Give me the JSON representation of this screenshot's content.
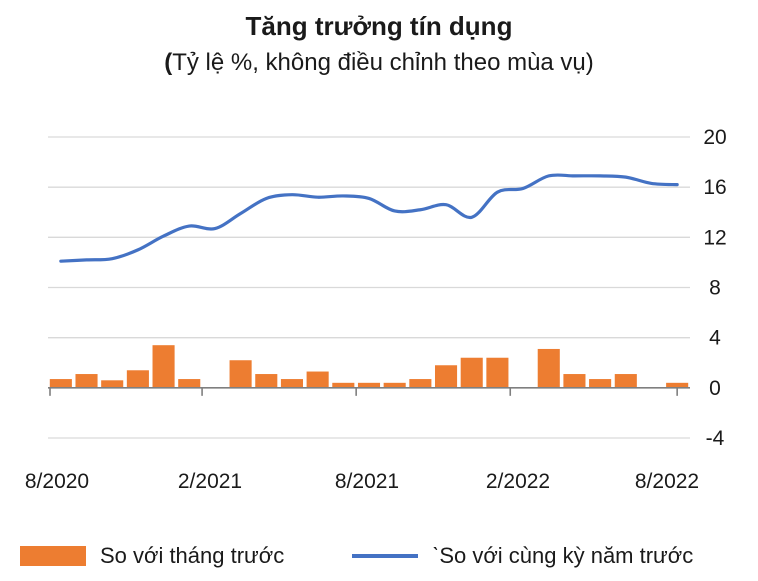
{
  "chart_data": {
    "type": "bar+line",
    "title": "Tăng trưởng tín dụng",
    "subtitle": "(Tỷ lệ %, không điều chỉnh theo mùa vụ)",
    "x_tick_labels": [
      "8/2020",
      "2/2021",
      "8/2021",
      "2/2022",
      "8/2022"
    ],
    "y_tick_labels": [
      "20",
      "16",
      "12",
      "8",
      "4",
      "0",
      "-4"
    ],
    "ylim": [
      -4,
      20
    ],
    "y_ticks": [
      20,
      16,
      12,
      8,
      4,
      0,
      -4
    ],
    "grid": true,
    "legend_position": "bottom",
    "months": [
      "8/2020",
      "9/2020",
      "10/2020",
      "11/2020",
      "12/2020",
      "1/2021",
      "2/2021",
      "3/2021",
      "4/2021",
      "5/2021",
      "6/2021",
      "7/2021",
      "8/2021",
      "9/2021",
      "10/2021",
      "11/2021",
      "12/2021",
      "1/2022",
      "2/2022",
      "3/2022",
      "4/2022",
      "5/2022",
      "6/2022",
      "7/2022",
      "8/2022"
    ],
    "series": [
      {
        "name": "So với tháng trước",
        "kind": "bar",
        "color": "#ED7D31",
        "values": [
          0.7,
          1.1,
          0.6,
          1.4,
          3.4,
          0.7,
          0.0,
          2.2,
          1.1,
          0.7,
          1.3,
          0.4,
          0.4,
          0.4,
          0.7,
          1.8,
          2.4,
          2.4,
          0.0,
          3.1,
          1.1,
          0.7,
          1.1,
          0.0,
          0.4
        ]
      },
      {
        "name": "So với cùng kỳ năm trước",
        "kind": "line",
        "color": "#4472C4",
        "values": [
          10.1,
          10.2,
          10.3,
          11.0,
          12.1,
          12.9,
          12.7,
          13.9,
          15.1,
          15.4,
          15.2,
          15.3,
          15.1,
          14.1,
          14.2,
          14.6,
          13.6,
          15.6,
          15.9,
          16.9,
          16.9,
          16.9,
          16.8,
          16.3,
          16.2
        ]
      }
    ]
  },
  "legend": {
    "bar_label": "So với tháng trước",
    "line_label": "ˋSo với cùng kỳ năm trước"
  }
}
